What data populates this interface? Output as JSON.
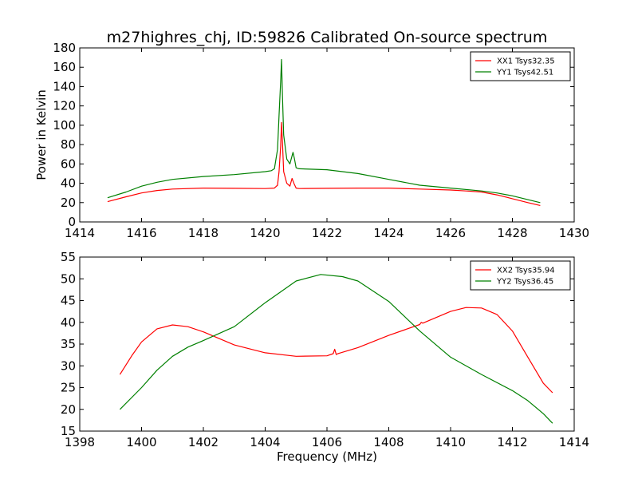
{
  "figure": {
    "title": "m27highres_chj, ID:59826 Calibrated On-source spectrum",
    "xlabel": "Frequency (MHz)"
  },
  "colors": {
    "red": "#ff0000",
    "green": "#008000"
  },
  "chart_data": [
    {
      "type": "line",
      "ylabel": "Power in Kelvin",
      "xlim": [
        1414,
        1430
      ],
      "ylim": [
        0,
        180
      ],
      "xticks": [
        1414,
        1416,
        1418,
        1420,
        1422,
        1424,
        1426,
        1428,
        1430
      ],
      "yticks": [
        0,
        20,
        40,
        60,
        80,
        100,
        120,
        140,
        160,
        180
      ],
      "legend": "top-right",
      "series": [
        {
          "name": "XX1 Tsys32.35",
          "color": "#ff0000",
          "x": [
            1414.9,
            1415.5,
            1416.0,
            1416.5,
            1417.0,
            1418.0,
            1419.0,
            1420.0,
            1420.3,
            1420.4,
            1420.45,
            1420.5,
            1420.53,
            1420.56,
            1420.6,
            1420.7,
            1420.8,
            1420.87,
            1420.93,
            1421.0,
            1421.1,
            1422.0,
            1423.0,
            1424.0,
            1425.0,
            1426.0,
            1426.5,
            1427.0,
            1427.5,
            1428.0,
            1428.5,
            1428.9
          ],
          "y": [
            21,
            26,
            30,
            32.5,
            34,
            35,
            34.8,
            34.5,
            35,
            38,
            52,
            78,
            103,
            82,
            52,
            40,
            37,
            45,
            40,
            35,
            34.5,
            34.8,
            35,
            35,
            34,
            33,
            32,
            31,
            28,
            24,
            20,
            17
          ]
        },
        {
          "name": "YY1 Tsys42.51",
          "color": "#008000",
          "x": [
            1414.9,
            1415.5,
            1416.0,
            1416.5,
            1417.0,
            1418.0,
            1419.0,
            1420.0,
            1420.2,
            1420.3,
            1420.4,
            1420.45,
            1420.5,
            1420.53,
            1420.56,
            1420.6,
            1420.7,
            1420.8,
            1420.9,
            1420.95,
            1421.0,
            1421.1,
            1422.0,
            1423.0,
            1424.0,
            1425.0,
            1426.0,
            1427.0,
            1427.5,
            1428.0,
            1428.5,
            1428.9
          ],
          "y": [
            25,
            31,
            37,
            41,
            44,
            47,
            49,
            52,
            53,
            55,
            75,
            110,
            145,
            168,
            130,
            90,
            65,
            60,
            72,
            65,
            56,
            55,
            54,
            50,
            44,
            38,
            35,
            32,
            30,
            27,
            23,
            20
          ]
        }
      ]
    },
    {
      "type": "line",
      "xlim": [
        1398,
        1414
      ],
      "ylim": [
        15,
        55
      ],
      "xticks": [
        1398,
        1400,
        1402,
        1404,
        1406,
        1408,
        1410,
        1412,
        1414
      ],
      "yticks": [
        15,
        20,
        25,
        30,
        35,
        40,
        45,
        50,
        55
      ],
      "legend": "top-right",
      "series": [
        {
          "name": "XX2 Tsys35.94",
          "color": "#ff0000",
          "x": [
            1399.3,
            1399.7,
            1400.0,
            1400.5,
            1401.0,
            1401.5,
            1402.0,
            1403.0,
            1404.0,
            1405.0,
            1406.0,
            1406.2,
            1406.25,
            1406.3,
            1406.35,
            1406.4,
            1407.0,
            1408.0,
            1409.0,
            1409.05,
            1409.1,
            1410.0,
            1410.5,
            1411.0,
            1411.5,
            1412.0,
            1412.5,
            1413.0,
            1413.3
          ],
          "y": [
            28,
            32.5,
            35.5,
            38.5,
            39.4,
            39,
            37.8,
            34.8,
            33,
            32.2,
            32.3,
            32.8,
            33.8,
            32.6,
            32.8,
            32.9,
            34.2,
            37,
            39.5,
            40,
            39.8,
            42.5,
            43.4,
            43.3,
            41.8,
            38,
            32,
            26,
            23.8
          ]
        },
        {
          "name": "YY2 Tsys36.45",
          "color": "#008000",
          "x": [
            1399.3,
            1400.0,
            1400.5,
            1401.0,
            1401.5,
            1402.0,
            1403.0,
            1404.0,
            1405.0,
            1405.8,
            1406.5,
            1407.0,
            1408.0,
            1409.0,
            1410.0,
            1411.0,
            1412.0,
            1412.5,
            1413.0,
            1413.3
          ],
          "y": [
            20,
            25,
            29,
            32.2,
            34.3,
            35.8,
            39,
            44.5,
            49.5,
            51,
            50.5,
            49.5,
            44.8,
            38,
            32,
            28,
            24.3,
            22,
            19,
            16.8
          ]
        }
      ]
    }
  ]
}
